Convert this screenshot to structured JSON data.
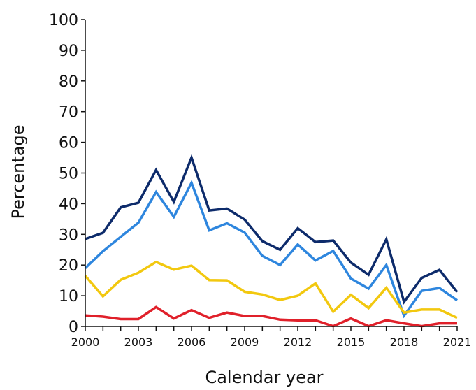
{
  "chart_data": {
    "type": "line",
    "title": "",
    "xlabel": "Calendar year",
    "ylabel": "Percentage",
    "x": [
      2000,
      2001,
      2002,
      2003,
      2004,
      2005,
      2006,
      2007,
      2008,
      2009,
      2010,
      2011,
      2012,
      2013,
      2014,
      2015,
      2016,
      2017,
      2018,
      2019,
      2020,
      2021
    ],
    "x_tick_labels": [
      "2000",
      "2003",
      "2006",
      "2009",
      "2012",
      "2015",
      "2018",
      "2021"
    ],
    "y_tick_labels": [
      "0",
      "10",
      "20",
      "30",
      "40",
      "50",
      "60",
      "70",
      "80",
      "90",
      "100"
    ],
    "ylim": [
      0,
      100
    ],
    "xlim": [
      2000,
      2021
    ],
    "grid": false,
    "series": [
      {
        "color": "#0d2b6b",
        "values": [
          28.5,
          30.5,
          38.8,
          40.3,
          51,
          40.6,
          55,
          37.8,
          38.4,
          34.8,
          27.8,
          25,
          32,
          27.5,
          28,
          20.8,
          16.8,
          28.4,
          8,
          15.8,
          18.4,
          11.2
        ]
      },
      {
        "color": "#2e86de",
        "values": [
          19,
          24.5,
          29.2,
          33.8,
          43.8,
          35.7,
          46.8,
          31.3,
          33.6,
          30.6,
          23,
          20,
          26.7,
          21.5,
          24.6,
          15.6,
          12.3,
          20,
          3.5,
          11.6,
          12.5,
          8.5
        ]
      },
      {
        "color": "#f2c80f",
        "values": [
          16.5,
          9.8,
          15.2,
          17.5,
          21,
          18.5,
          19.8,
          15.1,
          15,
          11.3,
          10.4,
          8.6,
          10,
          14,
          4.8,
          10.3,
          6,
          12.6,
          4.5,
          5.5,
          5.5,
          2.8
        ]
      },
      {
        "color": "#e0202a",
        "values": [
          3.6,
          3.2,
          2.4,
          2.4,
          6.3,
          2.6,
          5.3,
          2.8,
          4.5,
          3.4,
          3.4,
          2.2,
          2,
          2,
          0.1,
          2.6,
          0.1,
          2,
          1,
          0.1,
          1,
          1
        ]
      }
    ]
  }
}
